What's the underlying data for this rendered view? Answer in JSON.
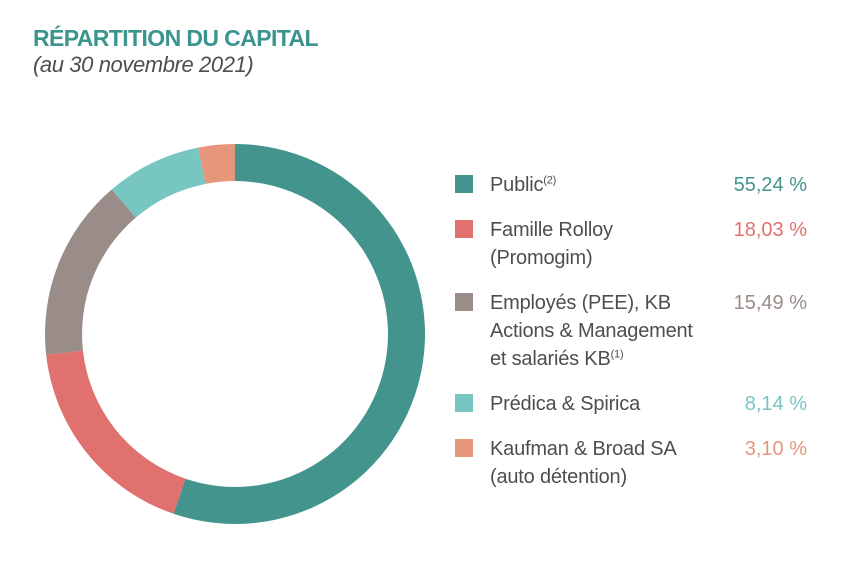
{
  "header": {
    "title": "RÉPARTITION DU CAPITAL",
    "subtitle": "(au 30 novembre 2021)"
  },
  "palette": {
    "title_teal": "#3B948E",
    "text_dark": "#4D4E50"
  },
  "legend": {
    "items": [
      {
        "id": "public",
        "line1": "Public",
        "sup": "(2)",
        "value": "55,24 %",
        "color": "#43948D"
      },
      {
        "id": "famille-rolloy",
        "line1": "Famille Rolloy",
        "line2": "(Promogim)",
        "value": "18,03 %",
        "color": "#E0716F"
      },
      {
        "id": "employes",
        "line1": "Employés (PEE), KB",
        "line2": "Actions & Management",
        "line3": "et salariés KB",
        "sup": "(1)",
        "value": "15,49 %",
        "color": "#9A8C88"
      },
      {
        "id": "predica-spirica",
        "line1": "Prédica & Spirica",
        "value": "8,14 %",
        "color": "#77C6C1"
      },
      {
        "id": "kaufman-broad",
        "line1": "Kaufman & Broad SA",
        "line2": "(auto détention)",
        "value": "3,10 %",
        "color": "#E6967A"
      }
    ]
  },
  "chart_data": {
    "type": "pie",
    "donut": true,
    "title": "RÉPARTITION DU CAPITAL",
    "subtitle": "(au 30 novembre 2021)",
    "labels": [
      "Public",
      "Famille Rolloy (Promogim)",
      "Employés (PEE), KB Actions & Management et salariés KB",
      "Prédica & Spirica",
      "Kaufman & Broad SA (auto détention)"
    ],
    "values": [
      55.24,
      18.03,
      15.49,
      8.14,
      3.1
    ],
    "display_values": [
      "55,24 %",
      "18,03 %",
      "15,49 %",
      "8,14 %",
      "3,10 %"
    ],
    "colors": [
      "#43948D",
      "#E0716F",
      "#9A8C88",
      "#77C6C1",
      "#E6967A"
    ],
    "start_angle_deg": -90,
    "direction": "clockwise",
    "inner_radius_ratio": 0.805,
    "legend_position": "right"
  }
}
